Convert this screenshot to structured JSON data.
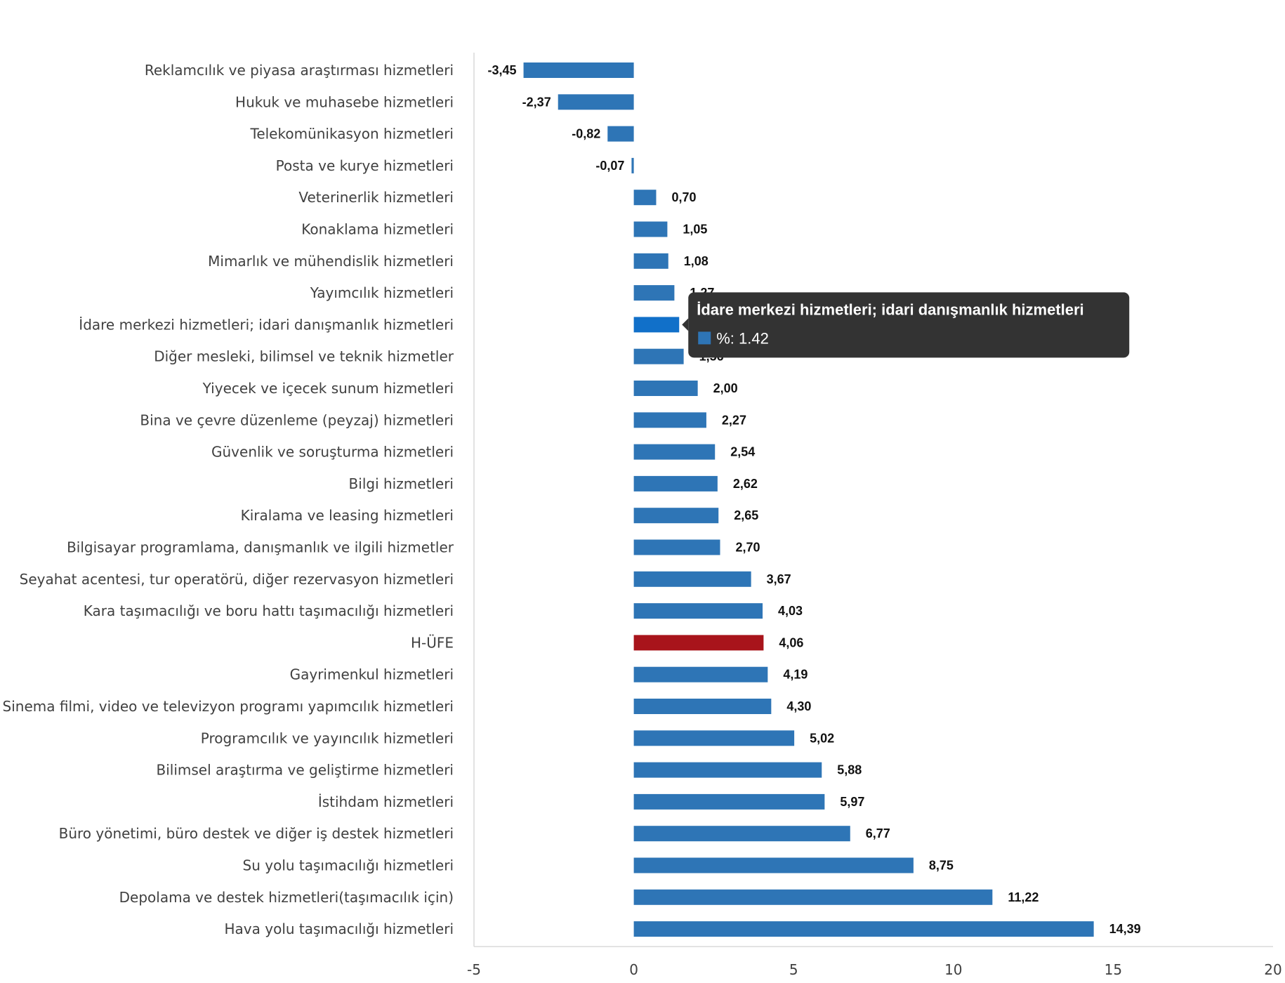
{
  "chart_data": {
    "type": "bar",
    "orientation": "horizontal",
    "categories": [
      "Reklamcılık ve piyasa araştırması hizmetleri",
      "Hukuk ve muhasebe hizmetleri",
      "Telekomünikasyon hizmetleri",
      "Posta ve kurye hizmetleri",
      "Veterinerlik hizmetleri",
      "Konaklama hizmetleri",
      "Mimarlık ve mühendislik hizmetleri",
      "Yayımcılık hizmetleri",
      "İdare merkezi hizmetleri; idari danışmanlık hizmetleri",
      "Diğer mesleki, bilimsel ve teknik hizmetler",
      "Yiyecek ve içecek sunum hizmetleri",
      "Bina ve çevre düzenleme (peyzaj) hizmetleri",
      "Güvenlik ve soruşturma hizmetleri",
      "Bilgi hizmetleri",
      "Kiralama ve leasing hizmetleri",
      "Bilgisayar programlama, danışmanlık ve ilgili hizmetler",
      "Seyahat acentesi, tur operatörü, diğer rezervasyon hizmetleri",
      "Kara taşımacılığı ve boru hattı taşımacılığı hizmetleri",
      "H-ÜFE",
      "Gayrimenkul hizmetleri",
      "Sinema filmi, video ve televizyon programı yapımcılık hizmetleri",
      "Programcılık ve yayıncılık hizmetleri",
      "Bilimsel araştırma ve geliştirme hizmetleri",
      "İstihdam hizmetleri",
      "Büro yönetimi, büro destek ve diğer iş destek hizmetleri",
      "Su yolu taşımacılığı hizmetleri",
      "Depolama ve destek hizmetleri(taşımacılık için)",
      "Hava yolu taşımacılığı hizmetleri"
    ],
    "values": [
      -3.45,
      -2.37,
      -0.82,
      -0.07,
      0.7,
      1.05,
      1.08,
      1.27,
      1.42,
      1.56,
      2.0,
      2.27,
      2.54,
      2.62,
      2.65,
      2.7,
      3.67,
      4.03,
      4.06,
      4.19,
      4.3,
      5.02,
      5.88,
      5.97,
      6.77,
      8.75,
      11.22,
      14.39
    ],
    "value_labels": [
      "-3,45",
      "-2,37",
      "-0,82",
      "-0,07",
      "0,70",
      "1,05",
      "1,08",
      "1,27",
      "1,42",
      "1,56",
      "2,00",
      "2,27",
      "2,54",
      "2,62",
      "2,65",
      "2,70",
      "3,67",
      "4,03",
      "4,06",
      "4,19",
      "4,30",
      "5,02",
      "5,88",
      "5,97",
      "6,77",
      "8,75",
      "11,22",
      "14,39"
    ],
    "xlim": [
      -5,
      20
    ],
    "xticks": [
      -5,
      0,
      5,
      10,
      15,
      20
    ],
    "grid": false,
    "legend": "none",
    "bar_color": "#2e75b6",
    "highlight": {
      "category": "H-ÜFE",
      "color": "#a8141b"
    },
    "hover": {
      "category": "İdare merkezi hizmetleri; idari danışmanlık hizmetleri",
      "color": "#1170c9"
    },
    "title": "",
    "xlabel": "",
    "ylabel": ""
  },
  "tooltip": {
    "title": "İdare merkezi hizmetleri; idari danışmanlık hizmetleri",
    "text": "%: 1.42",
    "background": "#333333",
    "swatch_color": "#2e75b6"
  }
}
